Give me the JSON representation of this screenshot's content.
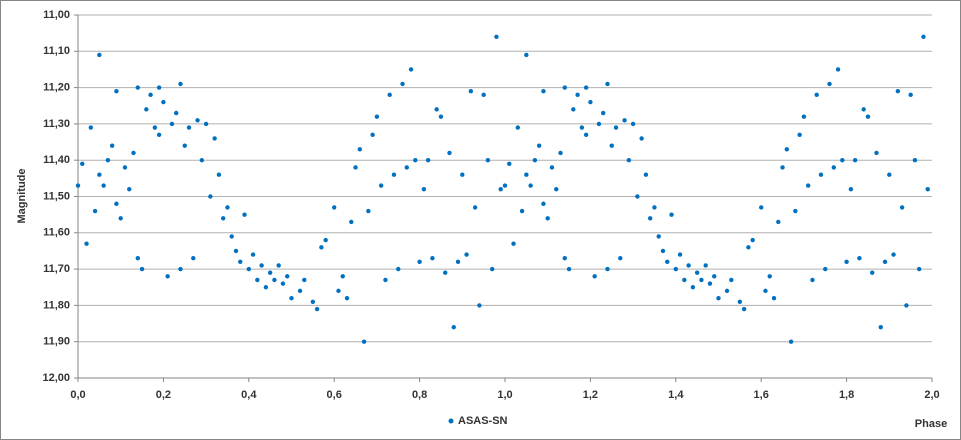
{
  "chart_data": {
    "type": "scatter",
    "xlabel": "Phase",
    "ylabel": "Magnitude",
    "xlim": [
      0,
      2
    ],
    "ylim": [
      12,
      11
    ],
    "inverted_y": true,
    "grid": true,
    "legend": "bottom",
    "xticks": [
      {
        "value": 0,
        "label": "0,0"
      },
      {
        "value": 0.2,
        "label": "0,2"
      },
      {
        "value": 0.4,
        "label": "0,4"
      },
      {
        "value": 0.6,
        "label": "0,6"
      },
      {
        "value": 0.8,
        "label": "0,8"
      },
      {
        "value": 1.0,
        "label": "1,0"
      },
      {
        "value": 1.2,
        "label": "1,2"
      },
      {
        "value": 1.4,
        "label": "1,4"
      },
      {
        "value": 1.6,
        "label": "1,6"
      },
      {
        "value": 1.8,
        "label": "1,8"
      },
      {
        "value": 2.0,
        "label": "2,0"
      }
    ],
    "yticks": [
      {
        "value": 11.0,
        "label": "11,00"
      },
      {
        "value": 11.1,
        "label": "11,10"
      },
      {
        "value": 11.2,
        "label": "11,20"
      },
      {
        "value": 11.3,
        "label": "11,30"
      },
      {
        "value": 11.4,
        "label": "11,40"
      },
      {
        "value": 11.5,
        "label": "11,50"
      },
      {
        "value": 11.6,
        "label": "11,60"
      },
      {
        "value": 11.7,
        "label": "11,70"
      },
      {
        "value": 11.8,
        "label": "11,80"
      },
      {
        "value": 11.9,
        "label": "11,90"
      },
      {
        "value": 12.0,
        "label": "12,00"
      }
    ],
    "series": [
      {
        "name": "ASAS-SN",
        "color": "#0070c0",
        "x": [
          0.0,
          0.01,
          0.02,
          0.03,
          0.04,
          0.05,
          0.05,
          0.06,
          0.07,
          0.08,
          0.09,
          0.09,
          0.1,
          0.11,
          0.12,
          0.13,
          0.14,
          0.14,
          0.15,
          0.16,
          0.17,
          0.18,
          0.19,
          0.19,
          0.2,
          0.21,
          0.22,
          0.23,
          0.24,
          0.24,
          0.25,
          0.26,
          0.27,
          0.28,
          0.29,
          0.3,
          0.31,
          0.32,
          0.33,
          0.34,
          0.35,
          0.36,
          0.37,
          0.38,
          0.39,
          0.4,
          0.41,
          0.42,
          0.43,
          0.44,
          0.45,
          0.46,
          0.47,
          0.48,
          0.49,
          0.5,
          0.52,
          0.53,
          0.55,
          0.56,
          0.57,
          0.58,
          0.6,
          0.61,
          0.62,
          0.63,
          0.64,
          0.65,
          0.66,
          0.67,
          0.68,
          0.69,
          0.7,
          0.71,
          0.72,
          0.73,
          0.74,
          0.75,
          0.76,
          0.77,
          0.78,
          0.79,
          0.8,
          0.81,
          0.82,
          0.83,
          0.84,
          0.85,
          0.86,
          0.87,
          0.88,
          0.89,
          0.9,
          0.91,
          0.92,
          0.93,
          0.94,
          0.95,
          0.96,
          0.97,
          0.98,
          0.99,
          1.0,
          1.01,
          1.02,
          1.03,
          1.04,
          1.05,
          1.05,
          1.06,
          1.07,
          1.08,
          1.09,
          1.09,
          1.1,
          1.11,
          1.12,
          1.13,
          1.14,
          1.14,
          1.15,
          1.16,
          1.17,
          1.18,
          1.19,
          1.19,
          1.2,
          1.21,
          1.22,
          1.23,
          1.24,
          1.24,
          1.25,
          1.26,
          1.27,
          1.28,
          1.29,
          1.3,
          1.31,
          1.32,
          1.33,
          1.34,
          1.35,
          1.36,
          1.37,
          1.38,
          1.39,
          1.4,
          1.41,
          1.42,
          1.43,
          1.44,
          1.45,
          1.46,
          1.47,
          1.48,
          1.49,
          1.5,
          1.52,
          1.53,
          1.55,
          1.56,
          1.57,
          1.58,
          1.6,
          1.61,
          1.62,
          1.63,
          1.64,
          1.65,
          1.66,
          1.67,
          1.68,
          1.69,
          1.7,
          1.71,
          1.72,
          1.73,
          1.74,
          1.75,
          1.76,
          1.77,
          1.78,
          1.79,
          1.8,
          1.81,
          1.82,
          1.83,
          1.84,
          1.85,
          1.86,
          1.87,
          1.88,
          1.89,
          1.9,
          1.91,
          1.92,
          1.93,
          1.94,
          1.95,
          1.96,
          1.97,
          1.98,
          1.99
        ],
        "values": [
          11.47,
          11.41,
          11.63,
          11.31,
          11.54,
          11.11,
          11.44,
          11.47,
          11.4,
          11.36,
          11.21,
          11.52,
          11.56,
          11.42,
          11.48,
          11.38,
          11.2,
          11.67,
          11.7,
          11.26,
          11.22,
          11.31,
          11.2,
          11.33,
          11.24,
          11.72,
          11.3,
          11.27,
          11.19,
          11.7,
          11.36,
          11.31,
          11.67,
          11.29,
          11.4,
          11.3,
          11.5,
          11.34,
          11.44,
          11.56,
          11.53,
          11.61,
          11.65,
          11.68,
          11.55,
          11.7,
          11.66,
          11.73,
          11.69,
          11.75,
          11.71,
          11.73,
          11.69,
          11.74,
          11.72,
          11.78,
          11.76,
          11.73,
          11.79,
          11.81,
          11.64,
          11.62,
          11.53,
          11.76,
          11.72,
          11.78,
          11.57,
          11.42,
          11.37,
          11.9,
          11.54,
          11.33,
          11.28,
          11.47,
          11.73,
          11.22,
          11.44,
          11.7,
          11.19,
          11.42,
          11.15,
          11.4,
          11.68,
          11.48,
          11.4,
          11.67,
          11.26,
          11.28,
          11.71,
          11.38,
          11.86,
          11.68,
          11.44,
          11.66,
          11.21,
          11.53,
          11.8,
          11.22,
          11.4,
          11.7,
          11.06,
          11.48,
          11.47,
          11.41,
          11.63,
          11.31,
          11.54,
          11.11,
          11.44,
          11.47,
          11.4,
          11.36,
          11.21,
          11.52,
          11.56,
          11.42,
          11.48,
          11.38,
          11.2,
          11.67,
          11.7,
          11.26,
          11.22,
          11.31,
          11.2,
          11.33,
          11.24,
          11.72,
          11.3,
          11.27,
          11.19,
          11.7,
          11.36,
          11.31,
          11.67,
          11.29,
          11.4,
          11.3,
          11.5,
          11.34,
          11.44,
          11.56,
          11.53,
          11.61,
          11.65,
          11.68,
          11.55,
          11.7,
          11.66,
          11.73,
          11.69,
          11.75,
          11.71,
          11.73,
          11.69,
          11.74,
          11.72,
          11.78,
          11.76,
          11.73,
          11.79,
          11.81,
          11.64,
          11.62,
          11.53,
          11.76,
          11.72,
          11.78,
          11.57,
          11.42,
          11.37,
          11.9,
          11.54,
          11.33,
          11.28,
          11.47,
          11.73,
          11.22,
          11.44,
          11.7,
          11.19,
          11.42,
          11.15,
          11.4,
          11.68,
          11.48,
          11.4,
          11.67,
          11.26,
          11.28,
          11.71,
          11.38,
          11.86,
          11.68,
          11.44,
          11.66,
          11.21,
          11.53,
          11.8,
          11.22,
          11.4,
          11.7,
          11.06,
          11.48
        ]
      }
    ]
  }
}
